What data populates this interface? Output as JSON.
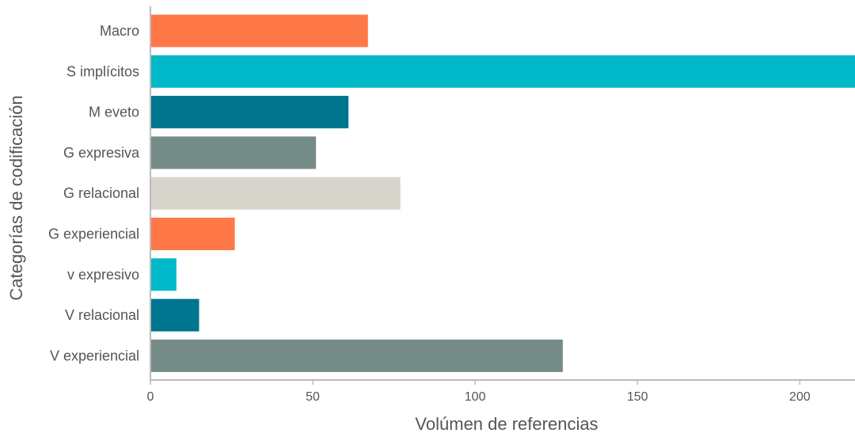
{
  "chart_data": {
    "type": "bar",
    "orientation": "horizontal",
    "categories": [
      "Macro",
      "S implícitos",
      "M eveto",
      "G expresiva",
      "G relacional",
      "G experiencial",
      "v expresivo",
      "V relacional",
      "V experiencial"
    ],
    "values": [
      67,
      220,
      61,
      51,
      77,
      26,
      8,
      15,
      127
    ],
    "colors": [
      "#ff7847",
      "#00b8c7",
      "#00758f",
      "#758b88",
      "#d8d6cc",
      "#ff7847",
      "#00b8c7",
      "#00758f",
      "#758b88"
    ],
    "xlabel": "Volúmen de referencias",
    "ylabel": "Categorías de codificación",
    "xlim": [
      0,
      217
    ],
    "xticks": [
      0,
      50,
      100,
      150,
      200
    ],
    "grid": false,
    "axis_color": "#bbbbbb"
  }
}
